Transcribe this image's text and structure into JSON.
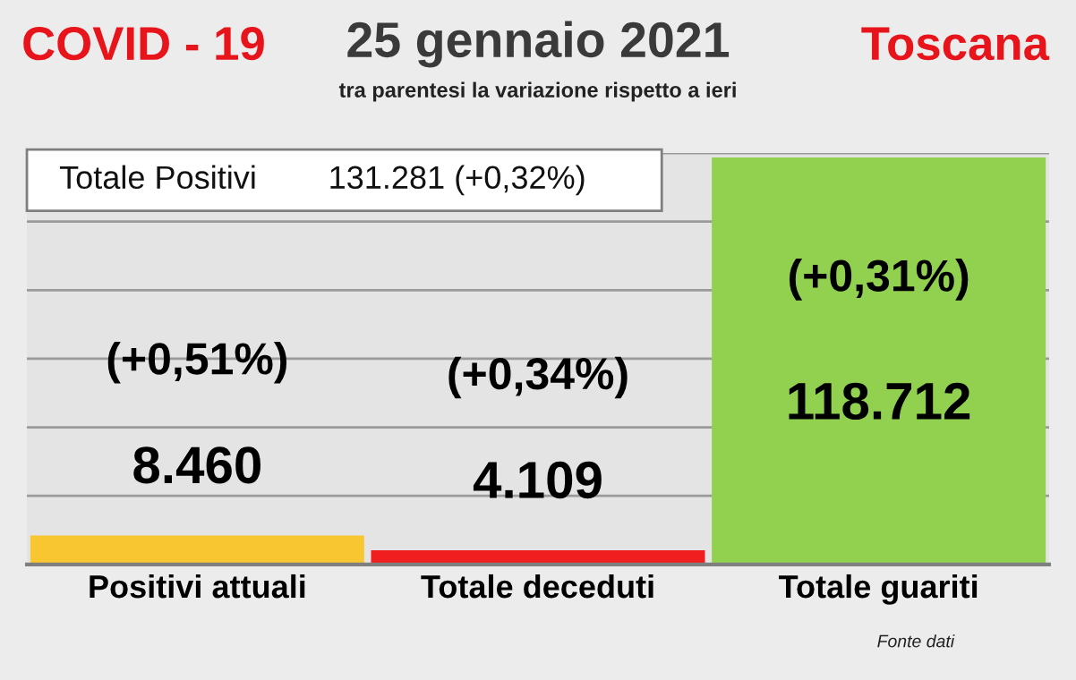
{
  "chart_data": {
    "type": "bar",
    "title": "25 gennaio 2021",
    "subtitle": "tra parentesi la variazione rispetto a ieri",
    "categories": [
      "Positivi attuali",
      "Totale deceduti",
      "Totale guariti"
    ],
    "values": [
      8460,
      4109,
      118712
    ],
    "colors": [
      "#f7c631",
      "#f01e1e",
      "#92d050"
    ],
    "value_labels": [
      "8.460",
      "4.109",
      "118.712"
    ],
    "ylim": [
      0,
      120000
    ],
    "yticks": [
      {
        "value": 0,
        "label": null
      },
      {
        "value": 20000,
        "label": null
      },
      {
        "value": 40000,
        "label": null
      },
      {
        "value": 60000,
        "label": null
      },
      {
        "value": 80000,
        "label": null
      },
      {
        "value": 100000,
        "label": null
      },
      {
        "value": 120000,
        "label": null
      }
    ],
    "grid": "y",
    "annotations": [
      "(+0,51%)",
      "(+0,34%)",
      "(+0,31%)",
      "COVID - 19",
      "Toscana",
      "Totale Positivi",
      "131.281 (+0,32%)",
      "Fonte dati"
    ]
  }
}
